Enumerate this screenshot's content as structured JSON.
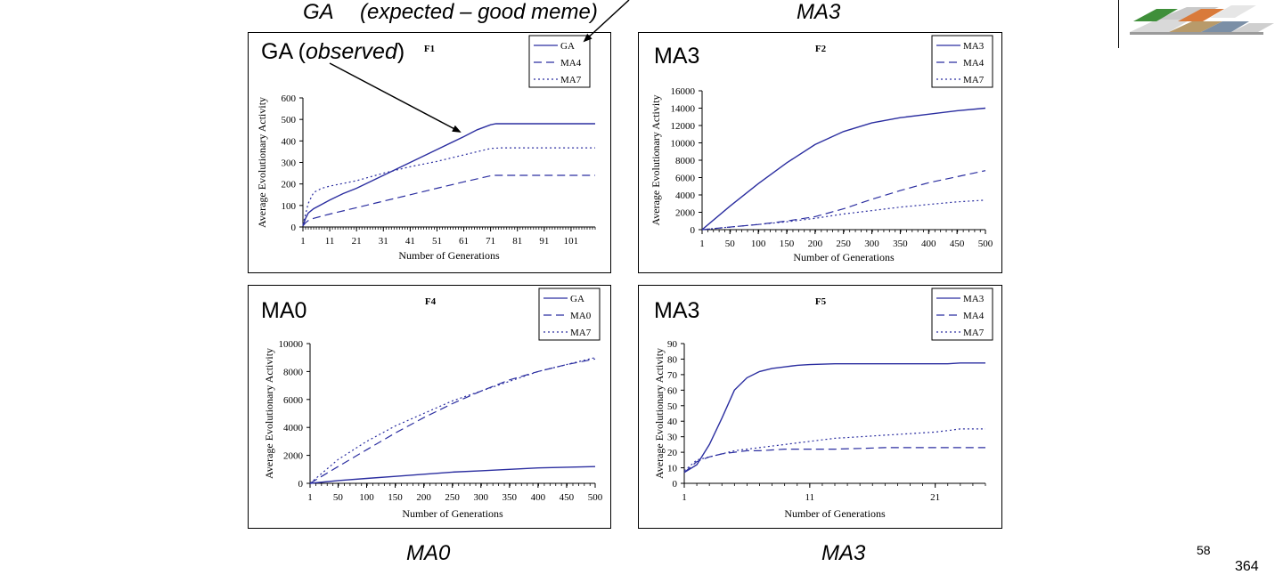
{
  "slide": {
    "captions": {
      "top_left_a": "GA",
      "top_left_b": "(expected – good meme)",
      "top_right": "MA3",
      "bottom_left": "MA0",
      "bottom_right": "MA3"
    },
    "slide_number": "58",
    "partial_number": "364",
    "annotation_observed": {
      "prefix": "GA (",
      "italic": "observed",
      "suffix": ")"
    }
  },
  "chart_data": [
    {
      "id": "F1",
      "type": "line",
      "title": "F1",
      "panel_label": "GA",
      "xlabel": "Number of Generations",
      "ylabel": "Average Evolutionary Activity",
      "xlim": [
        1,
        110
      ],
      "ylim": [
        0,
        600
      ],
      "xticks": [
        "1",
        "11",
        "21",
        "31",
        "41",
        "51",
        "61",
        "71",
        "81",
        "91",
        "101"
      ],
      "yticks": [
        "0",
        "100",
        "200",
        "300",
        "400",
        "500",
        "600"
      ],
      "legend": "top-right",
      "series": [
        {
          "name": "GA",
          "style": "solid",
          "x": [
            1,
            2,
            3,
            5,
            8,
            11,
            16,
            21,
            31,
            41,
            51,
            61,
            66,
            71,
            73,
            81,
            91,
            101,
            110
          ],
          "y": [
            5,
            40,
            65,
            85,
            105,
            125,
            155,
            180,
            240,
            300,
            360,
            420,
            452,
            475,
            480,
            480,
            480,
            480,
            480
          ]
        },
        {
          "name": "MA4",
          "style": "dashed",
          "x": [
            1,
            2,
            3,
            5,
            8,
            11,
            21,
            31,
            41,
            51,
            61,
            71,
            72,
            81,
            91,
            101,
            110
          ],
          "y": [
            5,
            20,
            30,
            40,
            50,
            60,
            90,
            120,
            150,
            180,
            210,
            238,
            240,
            240,
            240,
            240,
            240
          ]
        },
        {
          "name": "MA7",
          "style": "dotted",
          "x": [
            1,
            2,
            3,
            5,
            8,
            11,
            21,
            31,
            41,
            51,
            61,
            71,
            75,
            81,
            91,
            101,
            110
          ],
          "y": [
            10,
            60,
            110,
            160,
            180,
            190,
            215,
            250,
            280,
            305,
            335,
            365,
            368,
            368,
            368,
            368,
            368
          ]
        }
      ]
    },
    {
      "id": "F2",
      "type": "line",
      "title": "F2",
      "panel_label": "MA3",
      "xlabel": "Number of Generations",
      "ylabel": "Average Evolutionary Activity",
      "xlim": [
        1,
        500
      ],
      "ylim": [
        0,
        16000
      ],
      "xticks": [
        "1",
        "50",
        "100",
        "150",
        "200",
        "250",
        "300",
        "350",
        "400",
        "450",
        "500"
      ],
      "yticks": [
        "0",
        "2000",
        "4000",
        "6000",
        "8000",
        "10000",
        "12000",
        "14000",
        "16000"
      ],
      "legend": "top-right",
      "series": [
        {
          "name": "MA3",
          "style": "solid",
          "x": [
            1,
            50,
            100,
            150,
            200,
            250,
            300,
            350,
            400,
            450,
            500
          ],
          "y": [
            0,
            2700,
            5300,
            7700,
            9800,
            11300,
            12300,
            12900,
            13300,
            13700,
            14000
          ]
        },
        {
          "name": "MA4",
          "style": "dashed",
          "x": [
            1,
            50,
            100,
            150,
            200,
            250,
            300,
            350,
            400,
            450,
            500
          ],
          "y": [
            0,
            300,
            600,
            1000,
            1500,
            2400,
            3500,
            4500,
            5400,
            6100,
            6800
          ]
        },
        {
          "name": "MA7",
          "style": "dotted",
          "x": [
            1,
            50,
            100,
            150,
            200,
            250,
            300,
            350,
            400,
            450,
            500
          ],
          "y": [
            0,
            300,
            600,
            900,
            1300,
            1800,
            2200,
            2600,
            2900,
            3200,
            3400
          ]
        }
      ]
    },
    {
      "id": "F4",
      "type": "line",
      "title": "F4",
      "panel_label": "MA0",
      "xlabel": "Number of Generations",
      "ylabel": "Average Evolutionary Activity",
      "xlim": [
        1,
        500
      ],
      "ylim": [
        0,
        10000
      ],
      "xticks": [
        "1",
        "50",
        "100",
        "150",
        "200",
        "250",
        "300",
        "350",
        "400",
        "450",
        "500"
      ],
      "yticks": [
        "0",
        "2000",
        "4000",
        "6000",
        "8000",
        "10000"
      ],
      "legend": "top-right",
      "series": [
        {
          "name": "GA",
          "style": "solid",
          "x": [
            1,
            50,
            100,
            150,
            200,
            250,
            300,
            350,
            400,
            450,
            500
          ],
          "y": [
            0,
            200,
            350,
            500,
            650,
            800,
            900,
            1000,
            1100,
            1150,
            1200
          ]
        },
        {
          "name": "MA0",
          "style": "dashed",
          "x": [
            1,
            50,
            100,
            150,
            200,
            250,
            300,
            350,
            400,
            450,
            500
          ],
          "y": [
            0,
            1200,
            2400,
            3600,
            4700,
            5700,
            6600,
            7400,
            8000,
            8500,
            8900
          ]
        },
        {
          "name": "MA7",
          "style": "dotted",
          "x": [
            1,
            50,
            100,
            150,
            200,
            250,
            300,
            350,
            400,
            450,
            500
          ],
          "y": [
            0,
            1700,
            3000,
            4100,
            5000,
            5900,
            6600,
            7300,
            8000,
            8500,
            9000
          ]
        }
      ]
    },
    {
      "id": "F5",
      "type": "line",
      "title": "F5",
      "panel_label": "MA3",
      "xlabel": "Number of Generations",
      "ylabel": "Average Evolutionary Activity",
      "xlim": [
        1,
        25
      ],
      "ylim": [
        0,
        90
      ],
      "xticks": [
        "1",
        "11",
        "21"
      ],
      "yticks": [
        "0",
        "10",
        "20",
        "30",
        "40",
        "50",
        "60",
        "70",
        "80",
        "90"
      ],
      "legend": "top-right",
      "series": [
        {
          "name": "MA3",
          "style": "solid",
          "x": [
            1,
            2,
            3,
            4,
            5,
            6,
            7,
            8,
            9,
            10,
            11,
            13,
            15,
            17,
            19,
            21,
            22,
            23,
            25
          ],
          "y": [
            7,
            12,
            25,
            42,
            60,
            68,
            72,
            74,
            75,
            76,
            76.5,
            77,
            77,
            77,
            77,
            77,
            77,
            77.5,
            77.5
          ]
        },
        {
          "name": "MA4",
          "style": "dashed",
          "x": [
            1,
            2,
            3,
            4,
            5,
            6,
            7,
            8,
            9,
            10,
            11,
            13,
            15,
            17,
            19,
            21,
            23,
            25
          ],
          "y": [
            7,
            14,
            17,
            19,
            20,
            21,
            21,
            21.5,
            22,
            22,
            22,
            22,
            22.5,
            23,
            23,
            23,
            23,
            23
          ]
        },
        {
          "name": "MA7",
          "style": "dotted",
          "x": [
            1,
            2,
            3,
            4,
            5,
            6,
            7,
            8,
            9,
            10,
            11,
            13,
            15,
            17,
            19,
            21,
            22,
            23,
            24,
            25
          ],
          "y": [
            8,
            15,
            17,
            19,
            21,
            22,
            23,
            24,
            25,
            26,
            27,
            29,
            30,
            31,
            32,
            33,
            34,
            35,
            35,
            35
          ]
        }
      ]
    }
  ]
}
